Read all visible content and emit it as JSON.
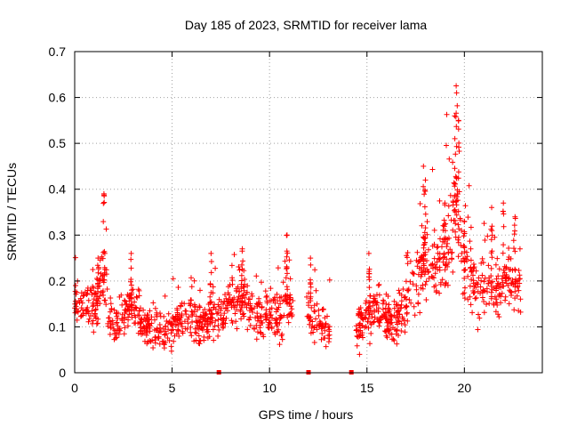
{
  "chart_data": {
    "type": "scatter",
    "title": "Day 185 of 2023, SRMTID for receiver lama",
    "xlabel": "GPS time / hours",
    "ylabel": "SRMTID / TECUs",
    "xlim": [
      0,
      24
    ],
    "ylim": [
      0,
      0.7
    ],
    "xticks": [
      0,
      5,
      10,
      15,
      20
    ],
    "yticks": [
      0,
      0.1,
      0.2,
      0.3,
      0.4,
      0.5,
      0.6,
      0.7
    ],
    "xtick_labels": [
      "0",
      "5",
      "10",
      "15",
      "20"
    ],
    "ytick_labels": [
      "0",
      "0.1",
      "0.2",
      "0.3",
      "0.4",
      "0.5",
      "0.6",
      "0.7"
    ],
    "grid": true,
    "marker": "+",
    "series_color": "#ff0000",
    "grid_color": "#a0a0a0",
    "series": [
      {
        "name": "SRMTID",
        "profile": [
          [
            0.0,
            0.15
          ],
          [
            0.5,
            0.14
          ],
          [
            1.0,
            0.15
          ],
          [
            1.3,
            0.18
          ],
          [
            1.5,
            0.24
          ],
          [
            1.7,
            0.14
          ],
          [
            2.0,
            0.1
          ],
          [
            2.5,
            0.12
          ],
          [
            3.0,
            0.15
          ],
          [
            3.5,
            0.1
          ],
          [
            4.0,
            0.09
          ],
          [
            4.5,
            0.09
          ],
          [
            5.0,
            0.1
          ],
          [
            5.5,
            0.12
          ],
          [
            6.0,
            0.12
          ],
          [
            6.5,
            0.1
          ],
          [
            7.0,
            0.13
          ],
          [
            7.5,
            0.12
          ],
          [
            8.0,
            0.15
          ],
          [
            8.5,
            0.17
          ],
          [
            9.0,
            0.14
          ],
          [
            9.5,
            0.12
          ],
          [
            10.0,
            0.13
          ],
          [
            10.5,
            0.12
          ],
          [
            11.0,
            0.15
          ],
          [
            12.0,
            0.12
          ],
          [
            12.5,
            0.11
          ],
          [
            13.0,
            0.1
          ],
          [
            14.5,
            0.1
          ],
          [
            15.0,
            0.12
          ],
          [
            15.5,
            0.14
          ],
          [
            16.0,
            0.12
          ],
          [
            16.5,
            0.11
          ],
          [
            17.0,
            0.14
          ],
          [
            17.5,
            0.2
          ],
          [
            18.0,
            0.24
          ],
          [
            18.5,
            0.23
          ],
          [
            19.0,
            0.27
          ],
          [
            19.3,
            0.32
          ],
          [
            19.6,
            0.4
          ],
          [
            19.9,
            0.26
          ],
          [
            20.3,
            0.22
          ],
          [
            20.8,
            0.18
          ],
          [
            21.3,
            0.2
          ],
          [
            21.8,
            0.17
          ],
          [
            22.3,
            0.2
          ],
          [
            22.9,
            0.19
          ]
        ],
        "gaps": [
          [
            11.2,
            11.9
          ],
          [
            13.1,
            14.4
          ]
        ],
        "peaks": [
          {
            "x": 1.5,
            "y": 0.39
          },
          {
            "x": 1.2,
            "y": 0.25
          },
          {
            "x": 2.9,
            "y": 0.26
          },
          {
            "x": 8.6,
            "y": 0.27
          },
          {
            "x": 7.0,
            "y": 0.26
          },
          {
            "x": 10.9,
            "y": 0.3
          },
          {
            "x": 12.1,
            "y": 0.25
          },
          {
            "x": 15.1,
            "y": 0.26
          },
          {
            "x": 17.9,
            "y": 0.45
          },
          {
            "x": 18.0,
            "y": 0.42
          },
          {
            "x": 19.0,
            "y": 0.37
          },
          {
            "x": 19.5,
            "y": 0.56
          },
          {
            "x": 19.6,
            "y": 0.61
          },
          {
            "x": 19.7,
            "y": 0.55
          },
          {
            "x": 20.0,
            "y": 0.33
          },
          {
            "x": 21.4,
            "y": 0.36
          },
          {
            "x": 22.0,
            "y": 0.37
          },
          {
            "x": 22.6,
            "y": 0.34
          }
        ],
        "zero_points": [
          7.4,
          12.0,
          14.2
        ]
      }
    ]
  }
}
